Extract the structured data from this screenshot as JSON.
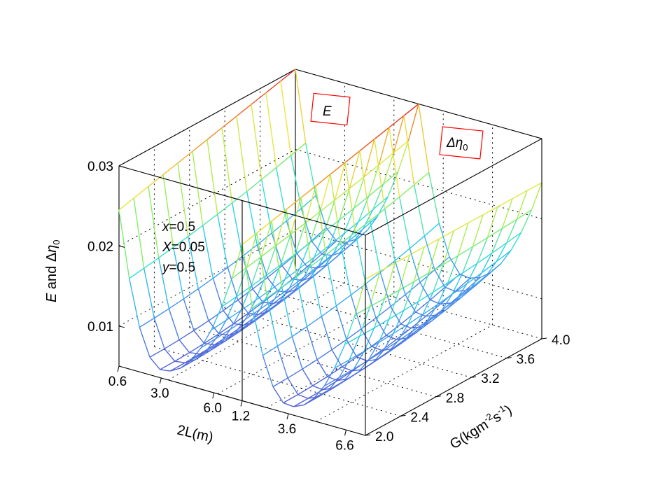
{
  "chart_data": {
    "type": "surface3d",
    "zlabel": {
      "base": "E",
      "mid": " and Δ",
      "eta": "η",
      "sub": "0"
    },
    "ylabel": {
      "text": "G(kgm",
      "sup1": "-2",
      "mid": "s",
      "sup2": "-1",
      "end": ")"
    },
    "xlabel": "2L(m)",
    "zlim": [
      0.005,
      0.03
    ],
    "z_ticks": [
      "0.01",
      "0.02",
      "0.03"
    ],
    "z_tick_values": [
      0.01,
      0.02,
      0.03
    ],
    "g_ticks": [
      "2.0",
      "2.4",
      "2.8",
      "3.2",
      "3.6",
      "4.0"
    ],
    "g_tick_values": [
      2.0,
      2.4,
      2.8,
      3.2,
      3.6,
      4.0
    ],
    "panels": [
      {
        "legend": "E",
        "legend_is_eta": false,
        "l_ticks": [
          "0.6",
          "3.0",
          "6.0"
        ],
        "l_tick_values": [
          0.6,
          3.0,
          6.0
        ],
        "lim": [
          0.6,
          7.6
        ]
      },
      {
        "legend": "Δη",
        "legend_sub": "0",
        "legend_is_eta": true,
        "l_ticks": [
          "1.2",
          "3.6",
          "6.6"
        ],
        "l_tick_values": [
          1.2,
          3.6,
          6.6
        ],
        "lim": [
          1.2,
          7.6
        ]
      }
    ],
    "annotations": [
      {
        "var": "x",
        "value": "=0.5"
      },
      {
        "var": "X",
        "value": "=0.05"
      },
      {
        "var": "y",
        "value": "=0.5"
      }
    ],
    "surface_samples": [
      {
        "panel": "E",
        "L": 0.6,
        "G": 2.0,
        "value": 0.0245
      },
      {
        "panel": "E",
        "L": 7.6,
        "G": 2.0,
        "value": 0.0245
      },
      {
        "panel": "E",
        "L": 0.6,
        "G": 4.0,
        "value": 0.03
      },
      {
        "panel": "E",
        "L": 7.6,
        "G": 4.0,
        "value": 0.03
      },
      {
        "panel": "E",
        "L": 3.0,
        "G": 2.0,
        "value": 0.006
      },
      {
        "panel": "Δη0",
        "L": 1.2,
        "G": 2.0,
        "value": 0.0245
      },
      {
        "panel": "Δη0",
        "L": 7.6,
        "G": 2.0,
        "value": 0.0245
      },
      {
        "panel": "Δη0",
        "L": 1.2,
        "G": 4.0,
        "value": 0.03
      },
      {
        "panel": "Δη0",
        "L": 7.6,
        "G": 4.0,
        "value": 0.0245
      },
      {
        "panel": "Δη0",
        "L": 3.6,
        "G": 2.0,
        "value": 0.006
      }
    ]
  }
}
